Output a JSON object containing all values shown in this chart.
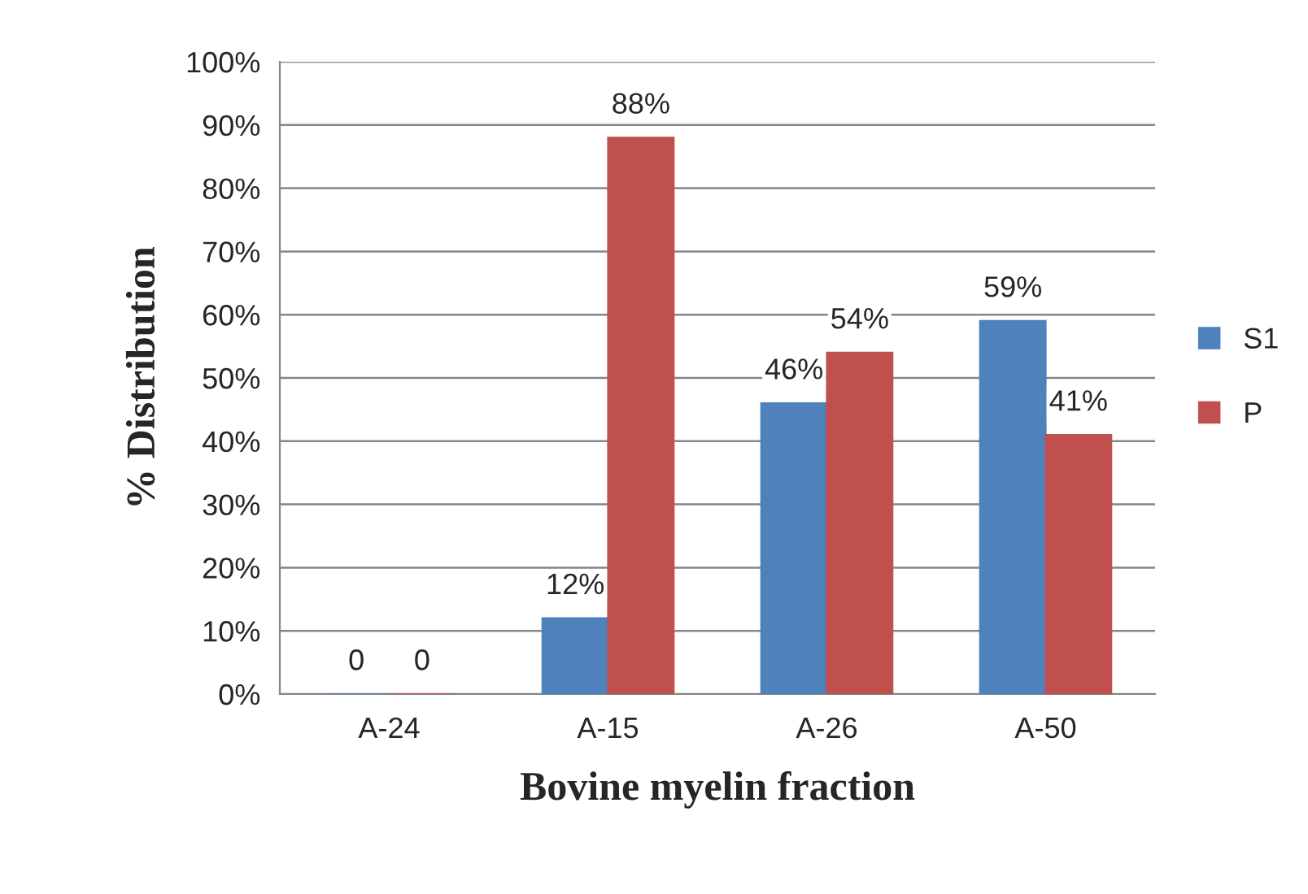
{
  "chart_data": {
    "type": "bar",
    "xlabel": "Bovine myelin fraction",
    "ylabel": "% Distribution",
    "categories": [
      "A-24",
      "A-15",
      "A-26",
      "A-50"
    ],
    "series": [
      {
        "name": "S1",
        "color": "#4f81bd",
        "values": [
          0,
          12,
          46,
          59
        ],
        "value_labels": [
          "0",
          "12%",
          "46%",
          "59%"
        ]
      },
      {
        "name": "P",
        "color": "#c0504d",
        "values": [
          0,
          88,
          54,
          41
        ],
        "value_labels": [
          "0",
          "88%",
          "54%",
          "41%"
        ]
      }
    ],
    "ylim": [
      0,
      100
    ],
    "yticks": [
      {
        "value": 0,
        "label": "0%"
      },
      {
        "value": 10,
        "label": "10%"
      },
      {
        "value": 20,
        "label": "20%"
      },
      {
        "value": 30,
        "label": "30%"
      },
      {
        "value": 40,
        "label": "40%"
      },
      {
        "value": 50,
        "label": "50%"
      },
      {
        "value": 60,
        "label": "60%"
      },
      {
        "value": 70,
        "label": "70%"
      },
      {
        "value": 80,
        "label": "80%"
      },
      {
        "value": 90,
        "label": "90%"
      },
      {
        "value": 100,
        "label": "100%"
      }
    ],
    "grid": "y",
    "legend": "right"
  }
}
